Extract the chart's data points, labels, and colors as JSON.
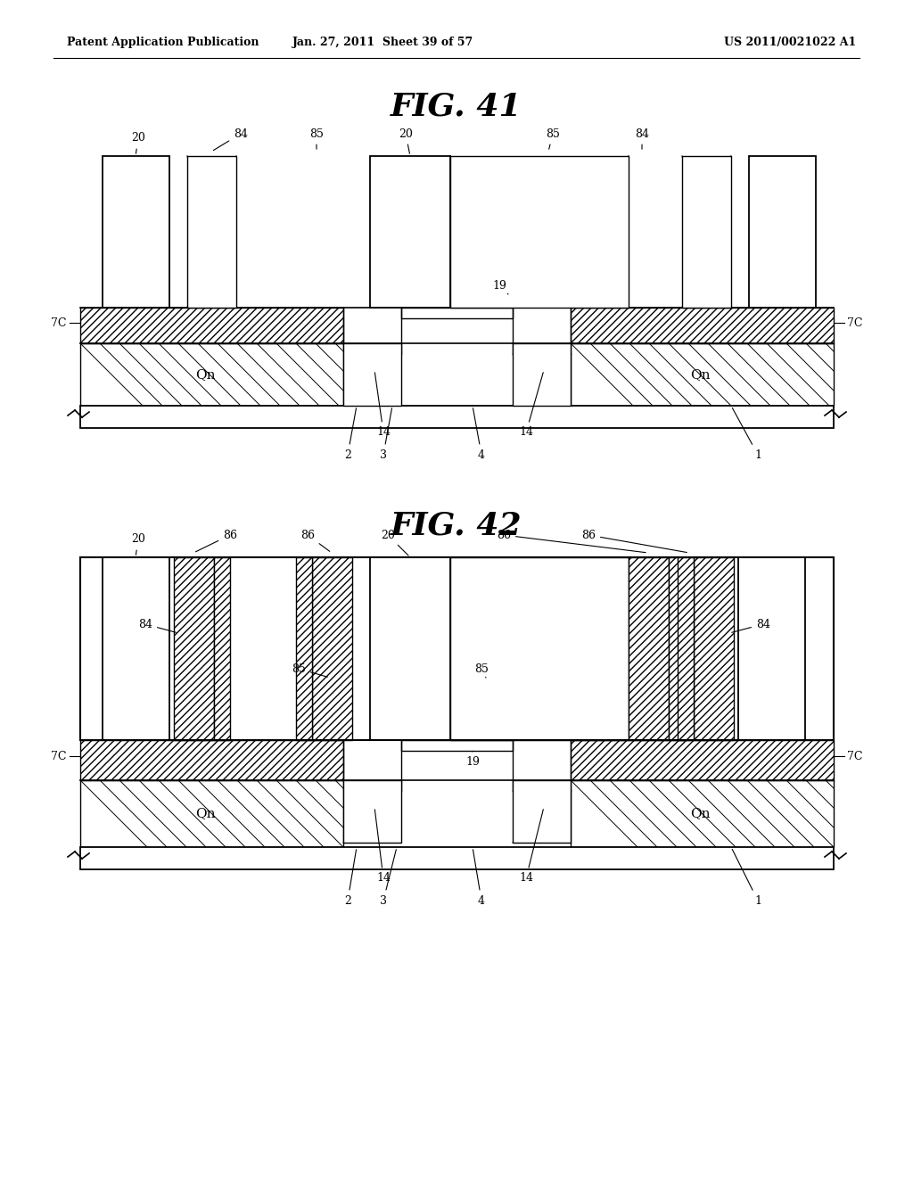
{
  "title1": "FIG. 41",
  "title2": "FIG. 42",
  "header_left": "Patent Application Publication",
  "header_mid": "Jan. 27, 2011  Sheet 39 of 57",
  "header_right": "US 2011/0021022 A1",
  "bg_color": "#ffffff"
}
